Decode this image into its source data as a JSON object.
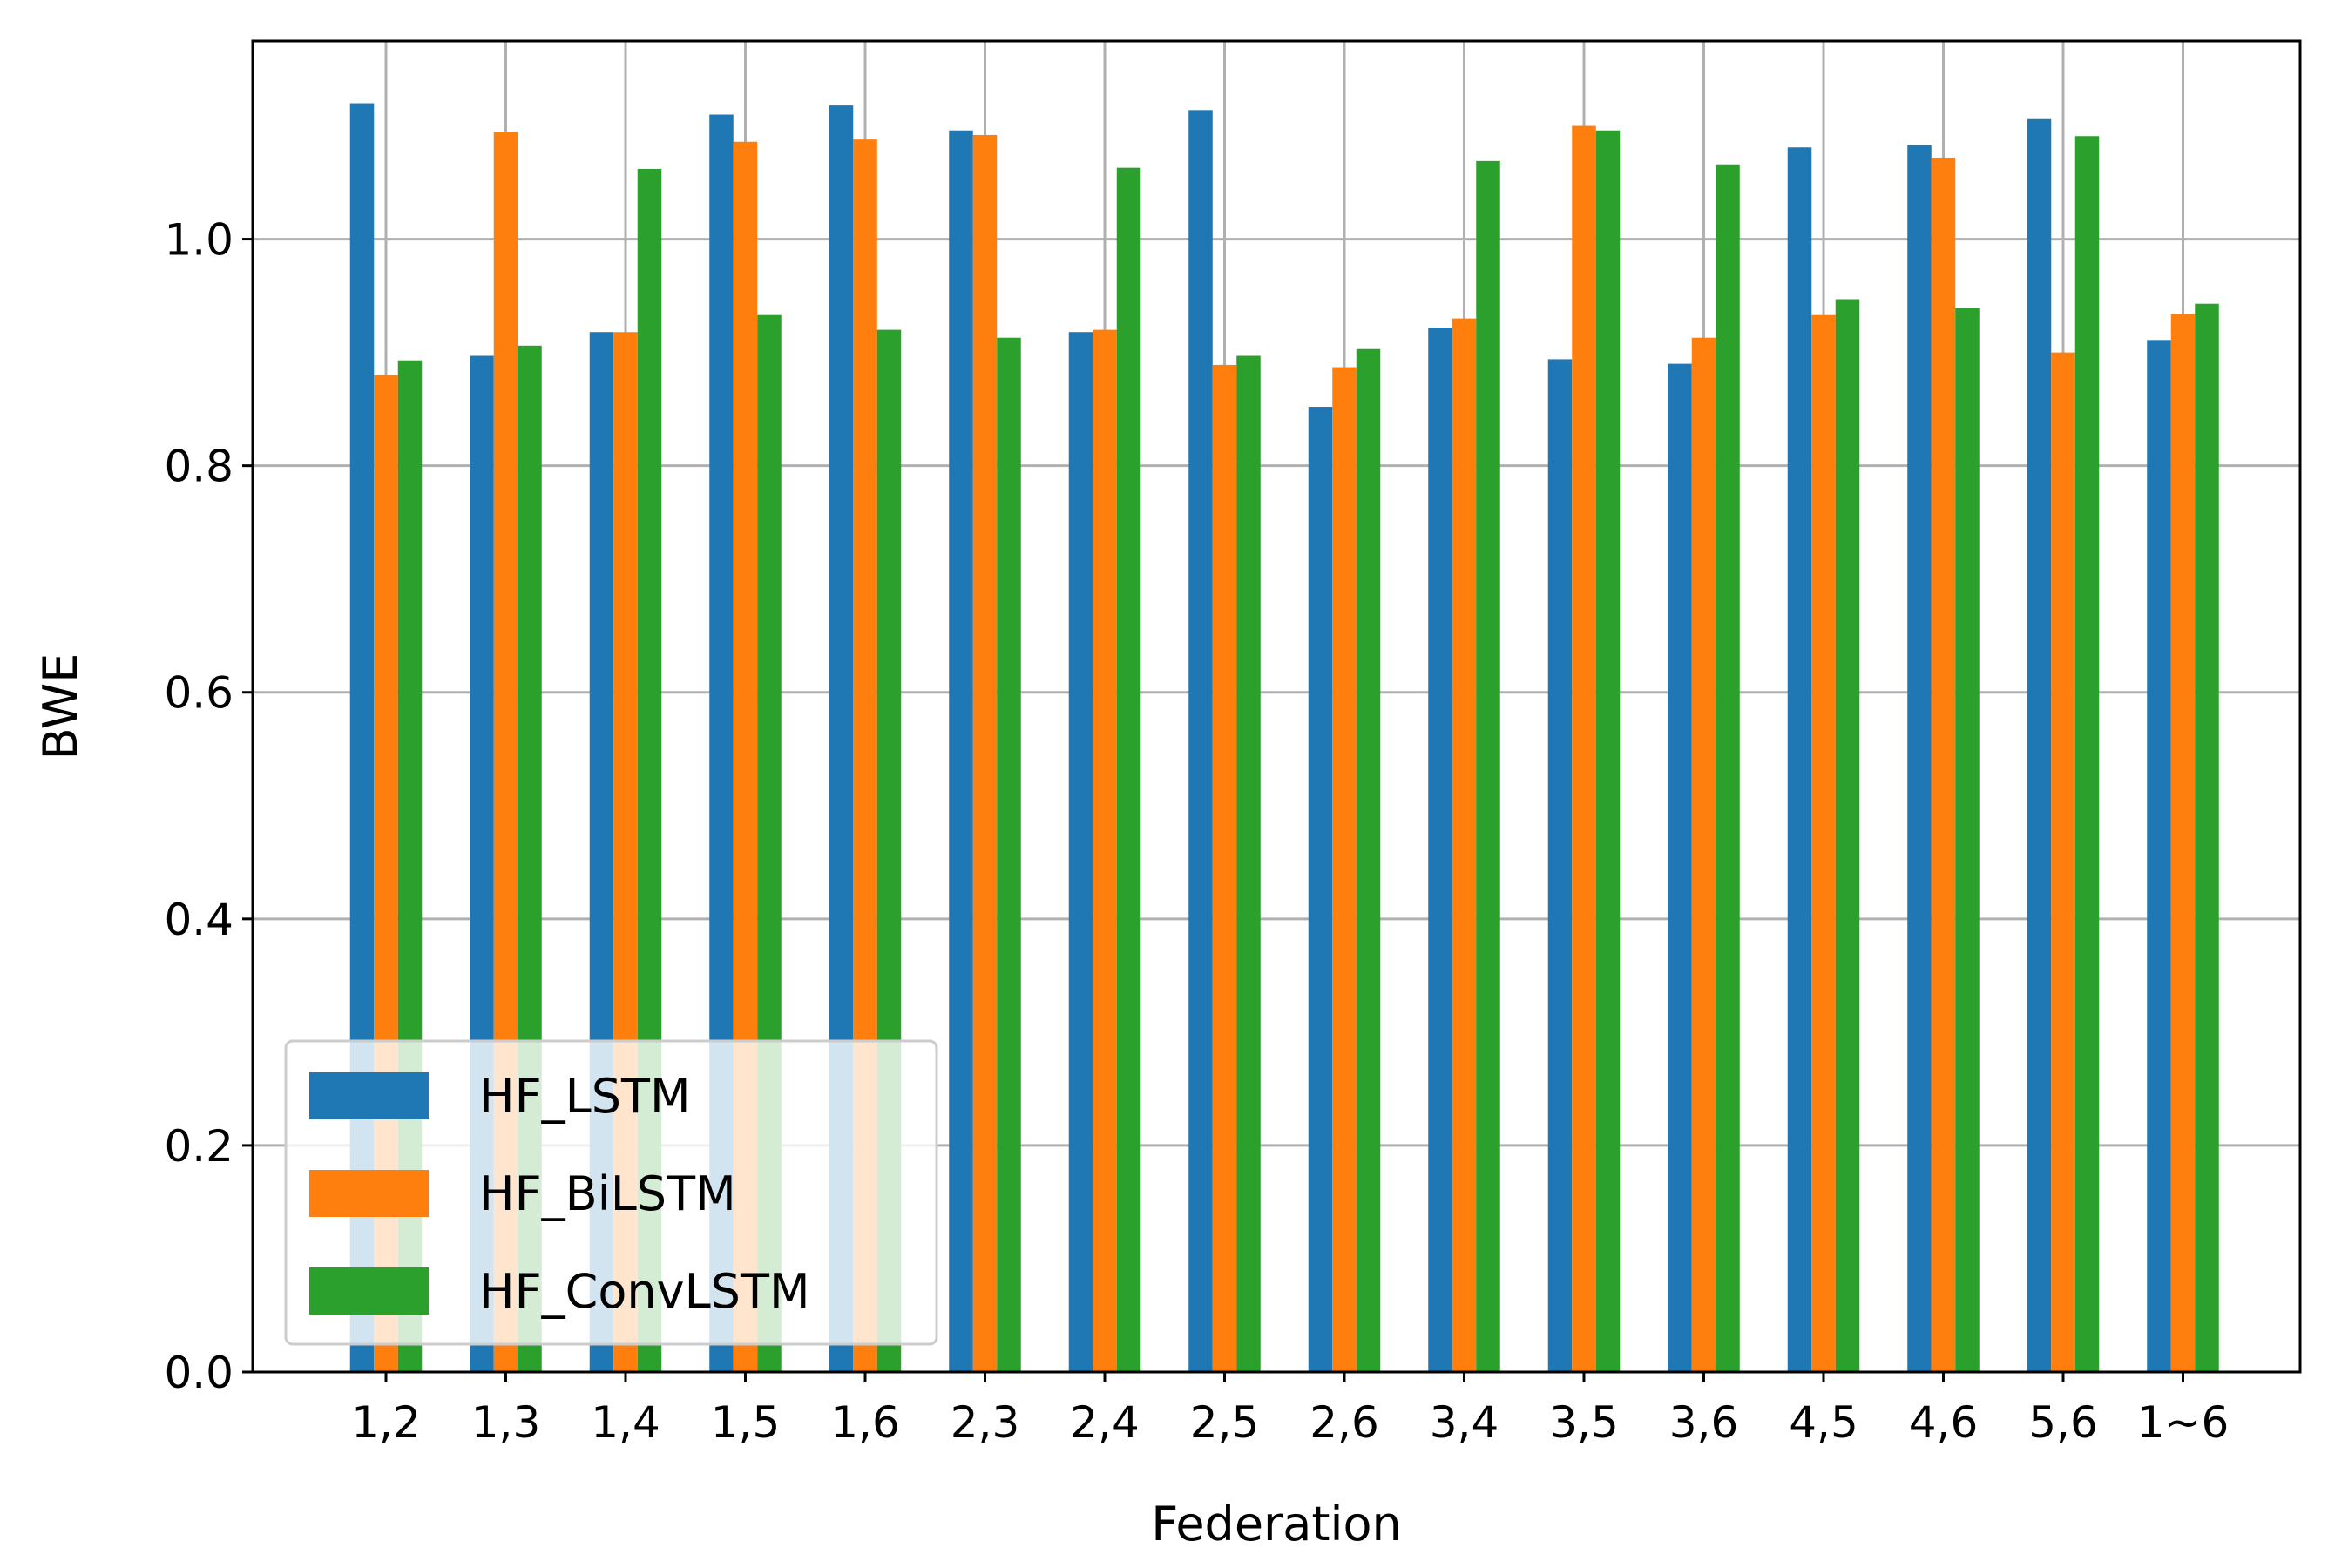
{
  "chart_data": {
    "type": "bar",
    "xlabel": "Federation",
    "ylabel": "BWE",
    "ylim": [
      0.0,
      1.175
    ],
    "yticks": [
      "0.0",
      "0.2",
      "0.4",
      "0.6",
      "0.8",
      "1.0"
    ],
    "ytick_values": [
      0.0,
      0.2,
      0.4,
      0.6,
      0.8,
      1.0
    ],
    "grid": true,
    "legend_position": "lower-left",
    "categories": [
      "1,2",
      "1,3",
      "1,4",
      "1,5",
      "1,6",
      "2,3",
      "2,4",
      "2,5",
      "2,6",
      "3,4",
      "3,5",
      "3,6",
      "4,5",
      "4,6",
      "5,6",
      "1~6"
    ],
    "series": [
      {
        "name": "HF_LSTM",
        "color": "#1f77b4",
        "values": [
          1.12,
          0.897,
          0.918,
          1.11,
          1.118,
          1.096,
          0.918,
          1.114,
          0.852,
          0.922,
          0.894,
          0.89,
          1.081,
          1.083,
          1.106,
          0.911
        ]
      },
      {
        "name": "HF_BiLSTM",
        "color": "#ff7f0e",
        "values": [
          0.88,
          1.095,
          0.918,
          1.086,
          1.088,
          1.092,
          0.92,
          0.889,
          0.887,
          0.93,
          1.1,
          0.913,
          0.933,
          1.072,
          0.9,
          0.934
        ]
      },
      {
        "name": "HF_ConvLSTM",
        "color": "#2ca02c",
        "values": [
          0.893,
          0.906,
          1.062,
          0.933,
          0.92,
          0.913,
          1.063,
          0.897,
          0.903,
          1.069,
          1.096,
          1.066,
          0.947,
          0.939,
          1.091,
          0.943
        ]
      }
    ]
  }
}
